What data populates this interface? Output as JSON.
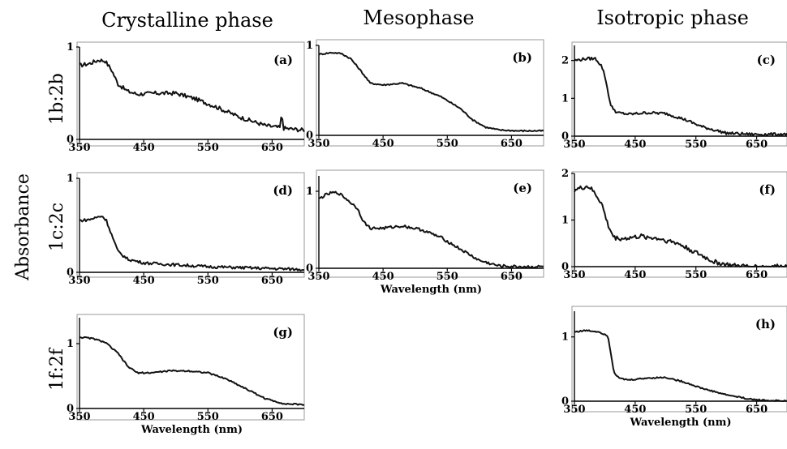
{
  "column_titles": [
    "Crystalline phase",
    "Mesophase",
    "Isotropic phase"
  ],
  "row_labels": [
    "1b:2b",
    "1c:2c",
    "1f:2f"
  ],
  "shared_ylabel": "Absorbance",
  "chart_data": [
    {
      "type": "line",
      "tag": "(a)",
      "xlim": [
        350,
        700
      ],
      "ylim": [
        0,
        1
      ],
      "xticks": [
        350,
        450,
        550,
        650
      ],
      "yticks": [
        0,
        1
      ],
      "xlabel": "",
      "noise": 0.022,
      "spike": [
        665,
        0.1
      ],
      "x": [
        350,
        365,
        380,
        390,
        400,
        410,
        425,
        440,
        470,
        500,
        530,
        560,
        600,
        640,
        670,
        700
      ],
      "y": [
        0.8,
        0.82,
        0.86,
        0.85,
        0.75,
        0.6,
        0.52,
        0.49,
        0.5,
        0.5,
        0.44,
        0.36,
        0.24,
        0.15,
        0.12,
        0.1
      ]
    },
    {
      "type": "line",
      "tag": "(b)",
      "xlim": [
        350,
        700
      ],
      "ylim": [
        0,
        1
      ],
      "xticks": [
        350,
        450,
        550,
        650
      ],
      "yticks": [
        0,
        1
      ],
      "xlabel": "",
      "noise": 0.008,
      "x": [
        350,
        370,
        385,
        400,
        415,
        430,
        450,
        480,
        510,
        540,
        570,
        590,
        610,
        630,
        660,
        700
      ],
      "y": [
        0.9,
        0.92,
        0.91,
        0.85,
        0.72,
        0.58,
        0.56,
        0.58,
        0.52,
        0.43,
        0.3,
        0.17,
        0.09,
        0.06,
        0.05,
        0.05
      ]
    },
    {
      "type": "line",
      "tag": "(c)",
      "xlim": [
        350,
        700
      ],
      "ylim": [
        0,
        2.4
      ],
      "xticks": [
        350,
        450,
        550,
        650
      ],
      "yticks": [
        0,
        1,
        2
      ],
      "xlabel": "",
      "noise": 0.015,
      "x": [
        350,
        370,
        385,
        395,
        400,
        405,
        410,
        420,
        440,
        470,
        500,
        530,
        560,
        600,
        640,
        700
      ],
      "y": [
        2.0,
        2.05,
        2.05,
        1.85,
        1.6,
        1.2,
        0.8,
        0.62,
        0.58,
        0.62,
        0.6,
        0.45,
        0.25,
        0.08,
        0.05,
        0.05
      ]
    },
    {
      "type": "line",
      "tag": "(d)",
      "xlim": [
        350,
        700
      ],
      "ylim": [
        0,
        1
      ],
      "xticks": [
        350,
        450,
        550,
        650
      ],
      "yticks": [
        0,
        1
      ],
      "xlabel": "",
      "noise": 0.015,
      "x": [
        350,
        365,
        375,
        385,
        392,
        400,
        410,
        425,
        450,
        500,
        550,
        600,
        650,
        700
      ],
      "y": [
        0.55,
        0.56,
        0.58,
        0.6,
        0.55,
        0.4,
        0.22,
        0.14,
        0.1,
        0.08,
        0.06,
        0.05,
        0.04,
        0.03
      ]
    },
    {
      "type": "line",
      "tag": "(e)",
      "xlim": [
        350,
        700
      ],
      "ylim": [
        0,
        1.2
      ],
      "xticks": [
        350,
        450,
        550,
        650
      ],
      "yticks": [
        0,
        1
      ],
      "xlabel": "Wavelength (nm)",
      "noise": 0.015,
      "x": [
        350,
        360,
        370,
        380,
        390,
        400,
        410,
        420,
        430,
        450,
        480,
        510,
        540,
        570,
        600,
        630,
        660,
        700
      ],
      "y": [
        0.9,
        0.95,
        0.98,
        0.98,
        0.92,
        0.85,
        0.78,
        0.6,
        0.52,
        0.52,
        0.55,
        0.5,
        0.4,
        0.25,
        0.1,
        0.03,
        0.02,
        0.02
      ]
    },
    {
      "type": "line",
      "tag": "(f)",
      "xlim": [
        350,
        700
      ],
      "ylim": [
        0,
        2
      ],
      "xticks": [
        350,
        450,
        550,
        650
      ],
      "yticks": [
        0,
        1,
        2
      ],
      "xlabel": "",
      "noise": 0.025,
      "x": [
        350,
        360,
        370,
        375,
        385,
        395,
        405,
        415,
        430,
        460,
        490,
        520,
        550,
        580,
        610,
        640,
        700
      ],
      "y": [
        1.65,
        1.68,
        1.72,
        1.7,
        1.55,
        1.35,
        0.9,
        0.62,
        0.6,
        0.65,
        0.6,
        0.5,
        0.3,
        0.1,
        0.02,
        0.0,
        0.0
      ]
    },
    {
      "type": "line",
      "tag": "(g)",
      "xlim": [
        350,
        700
      ],
      "ylim": [
        0,
        1.4
      ],
      "xticks": [
        350,
        450,
        550,
        650
      ],
      "yticks": [
        0,
        1
      ],
      "xlabel": "Wavelength (nm)",
      "noise": 0.008,
      "x": [
        350,
        370,
        390,
        410,
        425,
        440,
        460,
        490,
        520,
        550,
        580,
        610,
        640,
        670,
        700
      ],
      "y": [
        1.1,
        1.08,
        1.02,
        0.85,
        0.65,
        0.55,
        0.55,
        0.58,
        0.58,
        0.55,
        0.45,
        0.3,
        0.15,
        0.07,
        0.06
      ]
    },
    {
      "type": "line",
      "tag": "(h)",
      "xlim": [
        350,
        700
      ],
      "ylim": [
        0,
        1.4
      ],
      "xticks": [
        350,
        450,
        550,
        650
      ],
      "yticks": [
        0,
        1
      ],
      "xlabel": "Wavelength (nm)",
      "noise": 0.008,
      "x": [
        350,
        370,
        390,
        405,
        410,
        415,
        425,
        440,
        470,
        500,
        530,
        560,
        600,
        640,
        670,
        700
      ],
      "y": [
        1.08,
        1.1,
        1.08,
        1.02,
        0.75,
        0.45,
        0.35,
        0.33,
        0.36,
        0.37,
        0.3,
        0.2,
        0.1,
        0.03,
        0.01,
        0.0
      ]
    }
  ]
}
